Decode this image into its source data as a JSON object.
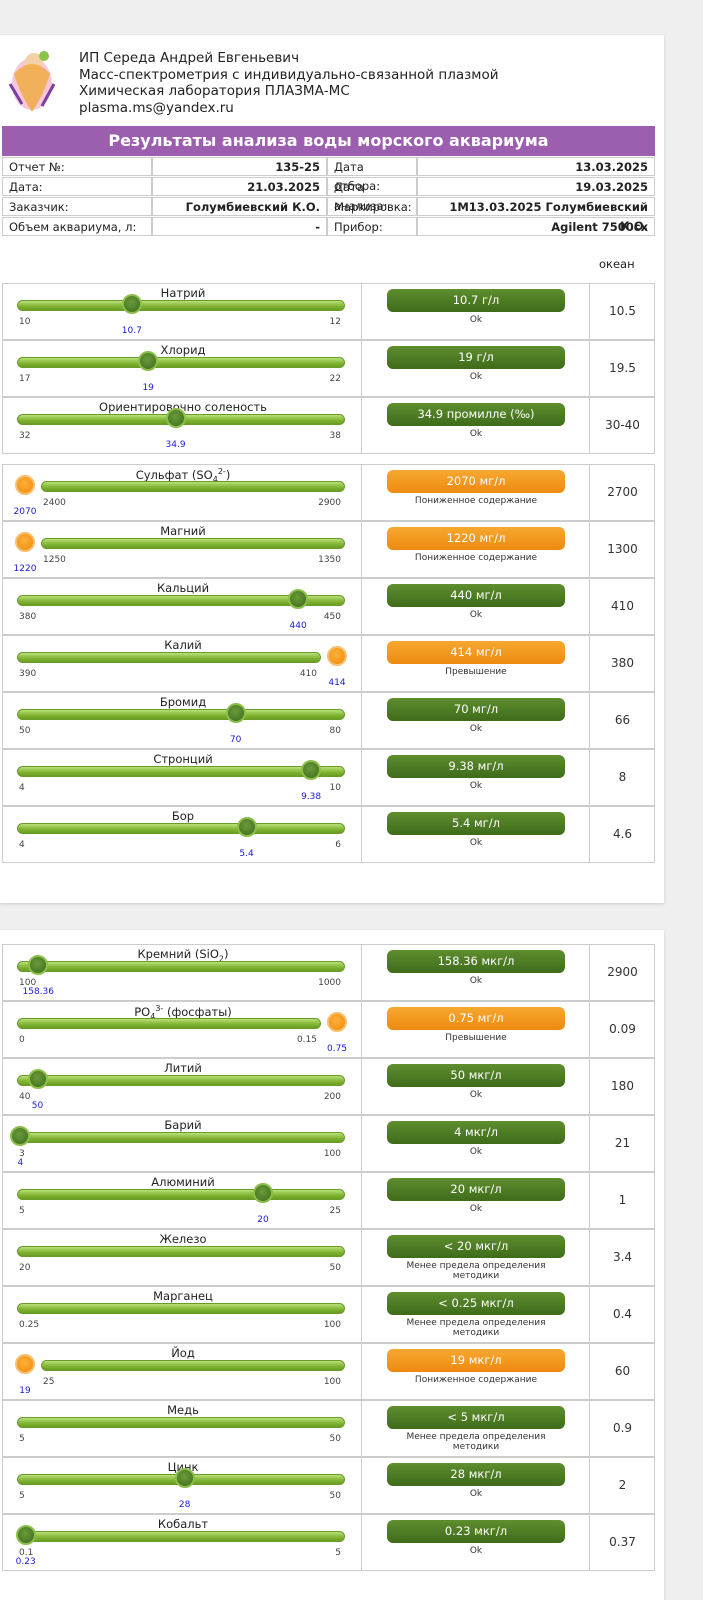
{
  "header": {
    "lines": [
      "ИП Середа Андрей Евгеньевич",
      "Масс-спектрометрия с индивидуально-связанной плазмой",
      "Химическая лаборатория ПЛАЗМА-МС",
      "plasma.ms@yandex.ru"
    ]
  },
  "title": "Результаты анализа воды морского аквариума",
  "info": {
    "rows": [
      [
        "Отчет №:",
        "135-25",
        "Дата отбора:",
        "13.03.2025"
      ],
      [
        "Дата:",
        "21.03.2025",
        "Дата анализа:",
        "19.03.2025"
      ],
      [
        "Заказчик:",
        "Голумбиевский К.О.",
        "Маркировка:",
        "1M13.03.2025 Голумбиевский К.О."
      ],
      [
        "Объем аквариума, л:",
        "-",
        "Прибор:",
        "Agilent 7500cx"
      ]
    ]
  },
  "ocean_label": "океан",
  "groups": [
    {
      "items": [
        {
          "name": "Натрий",
          "min": 10,
          "max": 12,
          "value": 10.7,
          "result": "10.7 г/л",
          "status": "Ok",
          "ocean": "10.5",
          "level": "ok"
        },
        {
          "name": "Хлорид",
          "min": 17,
          "max": 22,
          "value": 19,
          "result": "19 г/л",
          "status": "Ok",
          "ocean": "19.5",
          "level": "ok"
        },
        {
          "name": "Ориентировочно соленость",
          "min": 32,
          "max": 38,
          "value": 34.9,
          "result": "34.9 промилле (‰)",
          "status": "Ok",
          "ocean": "30-40",
          "level": "ok"
        }
      ]
    },
    {
      "items": [
        {
          "name": "Сульфат (SO",
          "name_sub": "4",
          "name_sup": "2-",
          "name_end": ")",
          "min": 2400,
          "max": 2900,
          "value": 2070,
          "result": "2070 мг/л",
          "status": "Пониженное содержание",
          "ocean": "2700",
          "level": "low"
        },
        {
          "name": "Магний",
          "min": 1250,
          "max": 1350,
          "value": 1220,
          "result": "1220 мг/л",
          "status": "Пониженное содержание",
          "ocean": "1300",
          "level": "low"
        },
        {
          "name": "Кальций",
          "min": 380,
          "max": 450,
          "value": 440,
          "result": "440 мг/л",
          "status": "Ok",
          "ocean": "410",
          "level": "ok"
        },
        {
          "name": "Калий",
          "min": 390,
          "max": 410,
          "value": 414,
          "result": "414 мг/л",
          "status": "Превышение",
          "ocean": "380",
          "level": "high"
        },
        {
          "name": "Бромид",
          "min": 50,
          "max": 80,
          "value": 70,
          "result": "70 мг/л",
          "status": "Ok",
          "ocean": "66",
          "level": "ok"
        },
        {
          "name": "Стронций",
          "min": 4,
          "max": 10,
          "value": 9.38,
          "result": "9.38 мг/л",
          "status": "Ok",
          "ocean": "8",
          "level": "ok"
        },
        {
          "name": "Бор",
          "min": 4,
          "max": 6,
          "value": 5.4,
          "result": "5.4 мг/л",
          "status": "Ok",
          "ocean": "4.6",
          "level": "ok"
        }
      ]
    },
    {
      "items": [
        {
          "name": "Кремний (SiO",
          "name_sub": "2",
          "name_end": ")",
          "min": 100,
          "max": 1000,
          "value": 158.36,
          "result": "158.36 мкг/л",
          "status": "Ok",
          "ocean": "2900",
          "level": "ok"
        },
        {
          "name": "PO",
          "name_sub": "4",
          "name_sup": "3-",
          "name_end": " (фосфаты)",
          "min": 0,
          "max": 0.15,
          "value": 0.75,
          "result": "0.75 мг/л",
          "status": "Превышение",
          "ocean": "0.09",
          "level": "high"
        },
        {
          "name": "Литий",
          "min": 40,
          "max": 200,
          "value": 50,
          "result": "50 мкг/л",
          "status": "Ok",
          "ocean": "180",
          "level": "ok"
        },
        {
          "name": "Барий",
          "min": 3,
          "max": 100,
          "value": 4,
          "result": "4 мкг/л",
          "status": "Ok",
          "ocean": "21",
          "level": "ok"
        },
        {
          "name": "Алюминий",
          "min": 5,
          "max": 25,
          "value": 20,
          "result": "20 мкг/л",
          "status": "Ok",
          "ocean": "1",
          "level": "ok"
        },
        {
          "name": "Железо",
          "min": 20,
          "max": 50,
          "result": "< 20 мкг/л",
          "status": "Менее предела определения методики",
          "ocean": "3.4",
          "level": "ok"
        },
        {
          "name": "Марганец",
          "min": 0.25,
          "max": 100,
          "result": "< 0.25 мкг/л",
          "status": "Менее предела определения методики",
          "ocean": "0.4",
          "level": "ok"
        },
        {
          "name": "Йод",
          "min": 25,
          "max": 100,
          "value": 19,
          "result": "19 мкг/л",
          "status": "Пониженное содержание",
          "ocean": "60",
          "level": "low"
        },
        {
          "name": "Медь",
          "min": 5,
          "max": 50,
          "result": "< 5 мкг/л",
          "status": "Менее предела определения методики",
          "ocean": "0.9",
          "level": "ok"
        },
        {
          "name": "Цинк",
          "min": 5,
          "max": 50,
          "value": 28,
          "result": "28 мкг/л",
          "status": "Ok",
          "ocean": "2",
          "level": "ok"
        },
        {
          "name": "Кобальт",
          "min": 0.1,
          "max": 5,
          "value": 0.23,
          "result": "0.23 мкг/л",
          "status": "Ok",
          "ocean": "0.37",
          "level": "ok"
        }
      ]
    }
  ]
}
